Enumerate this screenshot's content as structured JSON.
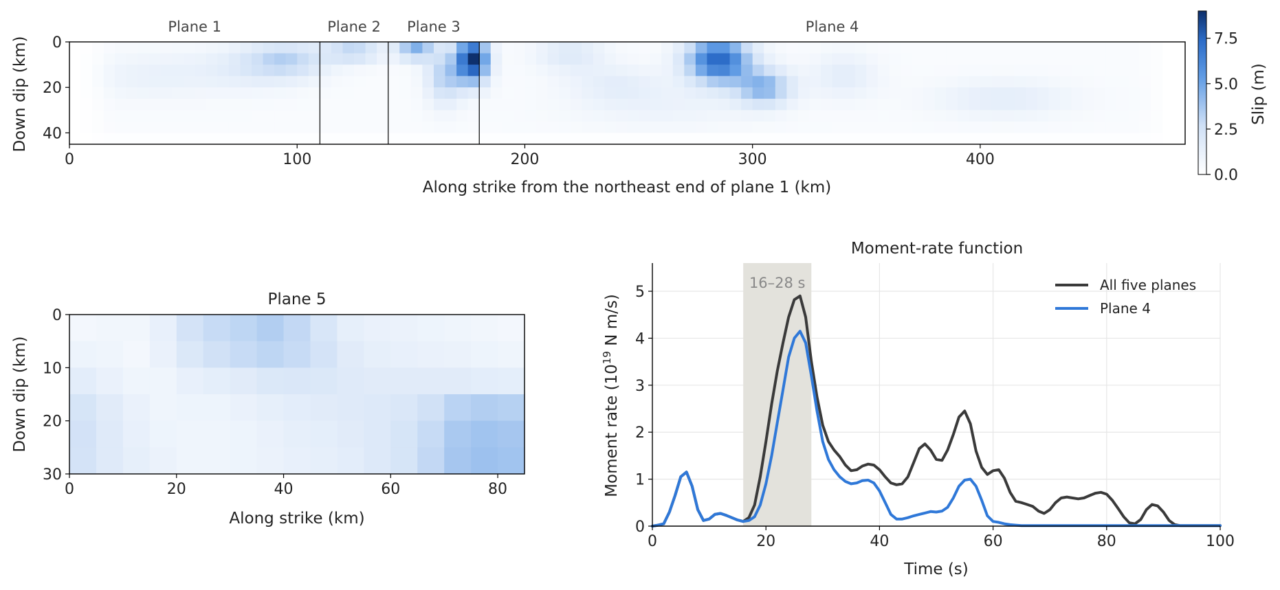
{
  "colors": {
    "cmap_low": "#ffffff",
    "cmap_high": "#0d2f6b",
    "all_planes": "#3a3a3a",
    "plane4": "#2f78d8",
    "shade": "#e3e2dc",
    "grid": "#e6e6e6"
  },
  "chart_data": [
    {
      "type": "heatmap",
      "name": "slip-map-planes-1-4",
      "xlabel": "Along strike from the northeast end of plane 1 (km)",
      "ylabel": "Down dip (km)",
      "xlim": [
        0,
        490
      ],
      "ylim": [
        45,
        0
      ],
      "xticks": [
        0,
        100,
        200,
        300,
        400
      ],
      "yticks": [
        0,
        20,
        40
      ],
      "plane_labels": [
        {
          "label": "Plane 1",
          "x_center": 55
        },
        {
          "label": "Plane 2",
          "x_center": 125
        },
        {
          "label": "Plane 3",
          "x_center": 160
        },
        {
          "label": "Plane 4",
          "x_center": 335
        }
      ],
      "plane_boundaries_km": [
        110,
        140,
        180
      ],
      "extent_km": [
        5,
        480
      ],
      "cell_width_km": 5,
      "cell_depth_km": 5,
      "depth_rows": 9,
      "slip_patches": [
        {
          "x": 95,
          "z": 8,
          "slip": 2.6,
          "sx": 18,
          "sz": 8
        },
        {
          "x": 75,
          "z": 12,
          "slip": 1.0,
          "sx": 25,
          "sz": 10
        },
        {
          "x": 35,
          "z": 15,
          "slip": 0.8,
          "sx": 25,
          "sz": 10
        },
        {
          "x": 125,
          "z": 4,
          "slip": 2.8,
          "sx": 12,
          "sz": 5
        },
        {
          "x": 152,
          "z": 3,
          "slip": 4.2,
          "sx": 8,
          "sz": 5
        },
        {
          "x": 177,
          "z": 8,
          "slip": 8.5,
          "sx": 7,
          "sz": 10
        },
        {
          "x": 165,
          "z": 15,
          "slip": 3.0,
          "sx": 8,
          "sz": 12
        },
        {
          "x": 220,
          "z": 5,
          "slip": 1.5,
          "sx": 15,
          "sz": 8
        },
        {
          "x": 240,
          "z": 18,
          "slip": 1.0,
          "sx": 20,
          "sz": 8
        },
        {
          "x": 285,
          "z": 8,
          "slip": 7.2,
          "sx": 14,
          "sz": 10
        },
        {
          "x": 305,
          "z": 20,
          "slip": 4.0,
          "sx": 12,
          "sz": 8
        },
        {
          "x": 340,
          "z": 15,
          "slip": 1.2,
          "sx": 15,
          "sz": 10
        },
        {
          "x": 410,
          "z": 25,
          "slip": 1.2,
          "sx": 30,
          "sz": 8
        },
        {
          "x": 260,
          "z": 28,
          "slip": 0.7,
          "sx": 40,
          "sz": 10
        }
      ],
      "colorbar": {
        "label": "Slip (m)",
        "ticks": [
          0.0,
          2.5,
          5.0,
          7.5
        ],
        "tick_labels": [
          "0.0",
          "2.5",
          "5.0",
          "7.5"
        ],
        "range": [
          0,
          9
        ]
      }
    },
    {
      "type": "heatmap",
      "name": "slip-map-plane-5",
      "title": "Plane 5",
      "xlabel": "Along strike (km)",
      "ylabel": "Down dip (km)",
      "xlim": [
        0,
        85
      ],
      "ylim": [
        30,
        0
      ],
      "xticks": [
        0,
        20,
        40,
        60,
        80
      ],
      "yticks": [
        0,
        10,
        20,
        30
      ],
      "cell_width_km": 5,
      "cell_depth_km": 5,
      "slip_grid": [
        [
          0.7,
          0.8,
          0.8,
          1.3,
          2.4,
          2.9,
          3.1,
          3.4,
          3.0,
          2.2,
          1.4,
          1.2,
          1.1,
          1.0,
          0.9,
          0.8,
          0.7
        ],
        [
          1.0,
          0.9,
          0.7,
          1.2,
          2.0,
          2.6,
          2.9,
          3.1,
          2.9,
          2.4,
          1.7,
          1.4,
          1.3,
          1.2,
          1.1,
          1.0,
          0.9
        ],
        [
          1.6,
          1.2,
          0.9,
          0.9,
          1.3,
          1.5,
          1.7,
          2.0,
          2.1,
          2.0,
          1.8,
          1.7,
          1.7,
          1.7,
          1.7,
          1.6,
          1.5
        ],
        [
          2.3,
          1.7,
          1.2,
          0.9,
          1.0,
          1.0,
          1.2,
          1.4,
          1.6,
          1.7,
          1.8,
          1.9,
          2.1,
          2.6,
          3.2,
          3.4,
          3.3
        ],
        [
          2.5,
          1.8,
          1.3,
          1.0,
          0.9,
          0.9,
          1.0,
          1.2,
          1.4,
          1.5,
          1.7,
          1.9,
          2.3,
          2.9,
          3.6,
          3.8,
          3.7
        ],
        [
          2.4,
          1.8,
          1.4,
          1.1,
          0.9,
          0.9,
          1.0,
          1.1,
          1.3,
          1.4,
          1.6,
          1.9,
          2.3,
          3.0,
          3.7,
          3.9,
          3.8
        ]
      ]
    },
    {
      "type": "line",
      "name": "moment-rate-function",
      "title": "Moment-rate function",
      "xlabel": "Time (s)",
      "ylabel_main": "Moment rate (10",
      "ylabel_sup": "19",
      "ylabel_tail": " N m/s)",
      "xlim": [
        0,
        100
      ],
      "ylim": [
        0,
        5.6
      ],
      "xticks": [
        0,
        20,
        40,
        60,
        80,
        100
      ],
      "yticks": [
        0,
        1,
        2,
        3,
        4,
        5
      ],
      "grid": true,
      "legend_position": "top-right",
      "shaded_span": {
        "x0": 16,
        "x1": 28,
        "label": "16–28 s"
      },
      "series": [
        {
          "name": "All five planes",
          "x": [
            0,
            1,
            2,
            3,
            4,
            5,
            6,
            7,
            8,
            9,
            10,
            11,
            12,
            13,
            14,
            15,
            16,
            17,
            18,
            19,
            20,
            21,
            22,
            23,
            24,
            25,
            26,
            27,
            28,
            29,
            30,
            31,
            32,
            33,
            34,
            35,
            36,
            37,
            38,
            39,
            40,
            41,
            42,
            43,
            44,
            45,
            46,
            47,
            48,
            49,
            50,
            51,
            52,
            53,
            54,
            55,
            56,
            57,
            58,
            59,
            60,
            61,
            62,
            63,
            64,
            65,
            66,
            67,
            68,
            69,
            70,
            71,
            72,
            73,
            74,
            75,
            76,
            77,
            78,
            79,
            80,
            81,
            82,
            83,
            84,
            85,
            86,
            87,
            88,
            89,
            90,
            91,
            92,
            93,
            94,
            95,
            96,
            97,
            98,
            99,
            100
          ],
          "y": [
            0,
            0.02,
            0.05,
            0.3,
            0.65,
            1.05,
            1.15,
            0.85,
            0.35,
            0.12,
            0.15,
            0.25,
            0.27,
            0.23,
            0.18,
            0.13,
            0.1,
            0.18,
            0.45,
            1.05,
            1.8,
            2.6,
            3.3,
            3.9,
            4.45,
            4.82,
            4.9,
            4.45,
            3.5,
            2.75,
            2.15,
            1.8,
            1.62,
            1.48,
            1.3,
            1.18,
            1.2,
            1.28,
            1.32,
            1.3,
            1.2,
            1.05,
            0.92,
            0.88,
            0.9,
            1.05,
            1.35,
            1.65,
            1.75,
            1.62,
            1.42,
            1.4,
            1.62,
            1.95,
            2.32,
            2.45,
            2.18,
            1.6,
            1.25,
            1.1,
            1.18,
            1.2,
            1.02,
            0.72,
            0.53,
            0.5,
            0.46,
            0.42,
            0.32,
            0.27,
            0.35,
            0.5,
            0.6,
            0.62,
            0.6,
            0.58,
            0.6,
            0.65,
            0.7,
            0.72,
            0.68,
            0.55,
            0.38,
            0.2,
            0.07,
            0.05,
            0.14,
            0.35,
            0.46,
            0.43,
            0.3,
            0.12,
            0.03,
            0.01,
            0.01,
            0.01,
            0.01,
            0.01,
            0.01,
            0.01,
            0.01
          ]
        },
        {
          "name": "Plane 4",
          "x": [
            0,
            1,
            2,
            3,
            4,
            5,
            6,
            7,
            8,
            9,
            10,
            11,
            12,
            13,
            14,
            15,
            16,
            17,
            18,
            19,
            20,
            21,
            22,
            23,
            24,
            25,
            26,
            27,
            28,
            29,
            30,
            31,
            32,
            33,
            34,
            35,
            36,
            37,
            38,
            39,
            40,
            41,
            42,
            43,
            44,
            45,
            46,
            47,
            48,
            49,
            50,
            51,
            52,
            53,
            54,
            55,
            56,
            57,
            58,
            59,
            60,
            61,
            62,
            63,
            64,
            65,
            66,
            67,
            68,
            69,
            70,
            71,
            72,
            73,
            74,
            75,
            76,
            77,
            78,
            79,
            80,
            81,
            82,
            83,
            84,
            85,
            86,
            87,
            88,
            89,
            90,
            91,
            92,
            93,
            94,
            95,
            96,
            97,
            98,
            99,
            100
          ],
          "y": [
            0,
            0.02,
            0.05,
            0.3,
            0.65,
            1.05,
            1.15,
            0.85,
            0.35,
            0.12,
            0.15,
            0.25,
            0.27,
            0.23,
            0.18,
            0.13,
            0.1,
            0.12,
            0.2,
            0.45,
            0.9,
            1.5,
            2.2,
            2.9,
            3.6,
            4.0,
            4.15,
            3.9,
            3.2,
            2.45,
            1.8,
            1.42,
            1.2,
            1.05,
            0.95,
            0.9,
            0.92,
            0.97,
            0.98,
            0.92,
            0.75,
            0.5,
            0.25,
            0.15,
            0.15,
            0.18,
            0.22,
            0.25,
            0.28,
            0.31,
            0.3,
            0.32,
            0.4,
            0.6,
            0.85,
            0.98,
            1.0,
            0.85,
            0.55,
            0.22,
            0.1,
            0.08,
            0.05,
            0.03,
            0.02,
            0.01,
            0.01,
            0.01,
            0.01,
            0.01,
            0.01,
            0.01,
            0.01,
            0.01,
            0.01,
            0.01,
            0.01,
            0.01,
            0.01,
            0.01,
            0.01,
            0.01,
            0.01,
            0.01,
            0.01,
            0.01,
            0.01,
            0.01,
            0.01,
            0.01,
            0.01,
            0.01,
            0.01,
            0.01,
            0.01,
            0.01,
            0.01,
            0.01,
            0.01,
            0.01,
            0.01
          ]
        }
      ]
    }
  ]
}
